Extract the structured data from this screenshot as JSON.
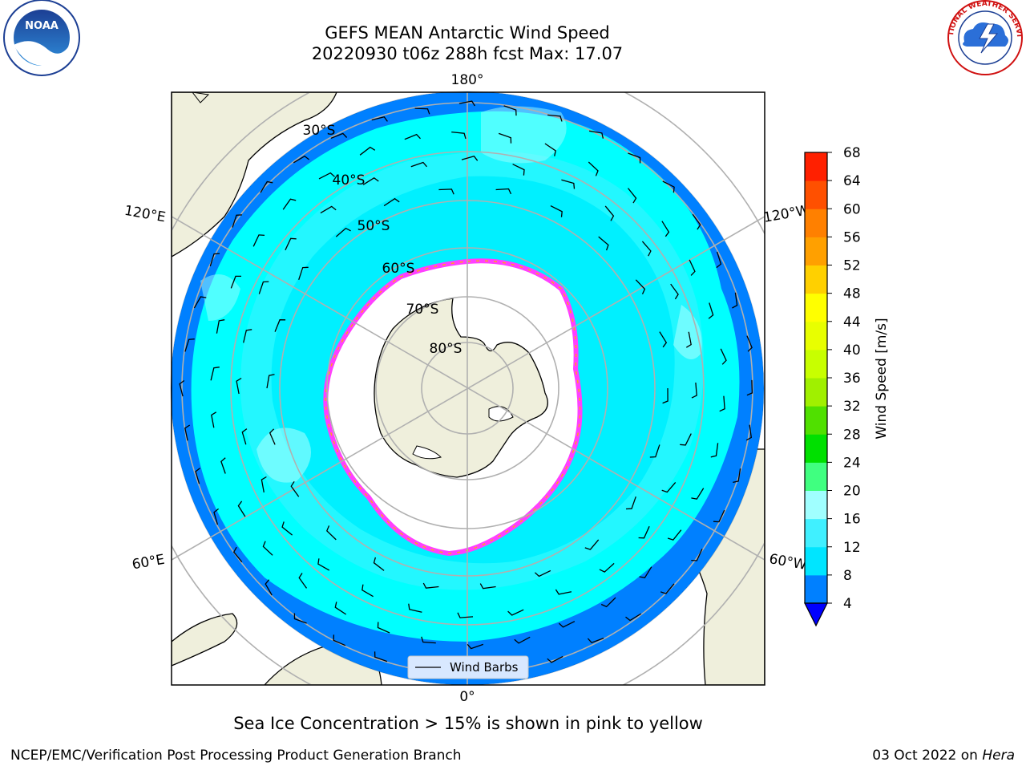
{
  "title": {
    "line1": "GEFS MEAN Antarctic Wind Speed",
    "line2": "20220930 t06z 288h fcst   Max: 17.07"
  },
  "map": {
    "meridian_labels": {
      "top": "180°",
      "bottom": "0°",
      "left_upper": "120°E",
      "left_lower": "60°E",
      "right_upper": "120°W",
      "right_lower": "60°W"
    },
    "latitude_labels": [
      "30°S",
      "40°S",
      "50°S",
      "60°S",
      "70°S",
      "80°S"
    ],
    "legend_label": "Wind Barbs"
  },
  "colorbar": {
    "label": "Wind Speed [m/s]",
    "ticks": [
      "4",
      "8",
      "12",
      "16",
      "20",
      "24",
      "28",
      "32",
      "36",
      "40",
      "44",
      "48",
      "52",
      "56",
      "60",
      "64",
      "68"
    ],
    "colors": [
      "#0080ff",
      "#00e5ff",
      "#40f0ff",
      "#a0ffff",
      "#40ff80",
      "#00e000",
      "#50e000",
      "#a0f000",
      "#c8ff00",
      "#e8ff00",
      "#ffff00",
      "#ffd000",
      "#ffa000",
      "#ff8000",
      "#ff5000",
      "#ff2000"
    ],
    "under_color": "#0000ff"
  },
  "note": "Sea Ice Concentration > 15% is shown in pink to yellow",
  "credit_left": "NCEP/EMC/Verification Post Processing Product Generation Branch",
  "credit_date": "03 Oct 2022 on",
  "credit_host": "Hera",
  "logos": {
    "noaa_text": "NOAA",
    "nws_text": "NATIONAL WEATHER SERVICE"
  }
}
